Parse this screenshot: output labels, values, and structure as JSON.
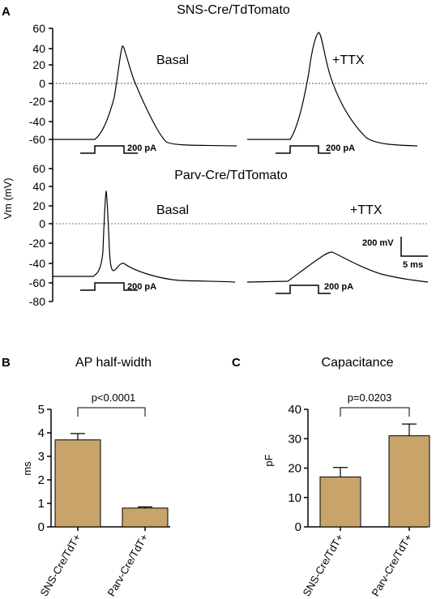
{
  "panel_a": {
    "letter": "A",
    "ylabel": "Vm (mV)",
    "yticks": [
      "60",
      "40",
      "20",
      "0",
      "-20",
      "-40",
      "-60",
      "-80"
    ],
    "groups": [
      {
        "title": "SNS-Cre/TdTomato",
        "basal_label": "Basal",
        "ttx_label": "+TTX",
        "stim_label": "200 pA",
        "stim_label_ttx": "200 pA"
      },
      {
        "title": "Parv-Cre/TdTomato",
        "basal_label": "Basal",
        "ttx_label": "+TTX",
        "stim_label": "200 pA",
        "stim_label_ttx": "200 pA"
      }
    ],
    "scalebar": {
      "v_label": "200 mV",
      "t_label": "5 ms"
    }
  },
  "chart_data": [
    {
      "type": "line",
      "panel": "A",
      "ylabel": "Vm (mV)",
      "ylim": [
        -80,
        60
      ],
      "zero_line": "dashed",
      "series": [
        {
          "cell": "SNS-Cre/TdTomato",
          "condition": "Basal",
          "resting_mV": -57,
          "peak_mV": 40
        },
        {
          "cell": "SNS-Cre/TdTomato",
          "condition": "+TTX",
          "resting_mV": -57,
          "peak_mV": 55
        },
        {
          "cell": "Parv-Cre/TdTomato",
          "condition": "Basal",
          "resting_mV": -55,
          "peak_mV": 35
        },
        {
          "cell": "Parv-Cre/TdTomato",
          "condition": "+TTX",
          "resting_mV": -55,
          "peak_mV": -28
        }
      ]
    },
    {
      "type": "bar",
      "panel_letter": "B",
      "title": "AP half-width",
      "ylabel": "ms",
      "ylim": [
        0,
        5
      ],
      "yticks": [
        "0",
        "1",
        "2",
        "3",
        "4",
        "5"
      ],
      "categories": [
        "SNS-Cre/TdT+",
        "Parv-Cre/TdT+"
      ],
      "values": [
        3.7,
        0.8
      ],
      "errors": [
        0.27,
        0.05
      ],
      "annotation": "p<0.0001",
      "bar_color": "#c8a46b"
    },
    {
      "type": "bar",
      "panel_letter": "C",
      "title": "Capacitance",
      "ylabel": "pF",
      "ylim": [
        0,
        40
      ],
      "yticks": [
        "0",
        "10",
        "20",
        "30",
        "40"
      ],
      "categories": [
        "SNS-Cre/TdT+",
        "Parv-Cre/TdT+"
      ],
      "values": [
        17,
        31
      ],
      "errors": [
        3.2,
        4.0
      ],
      "annotation": "p=0.0203",
      "bar_color": "#c8a46b"
    }
  ]
}
